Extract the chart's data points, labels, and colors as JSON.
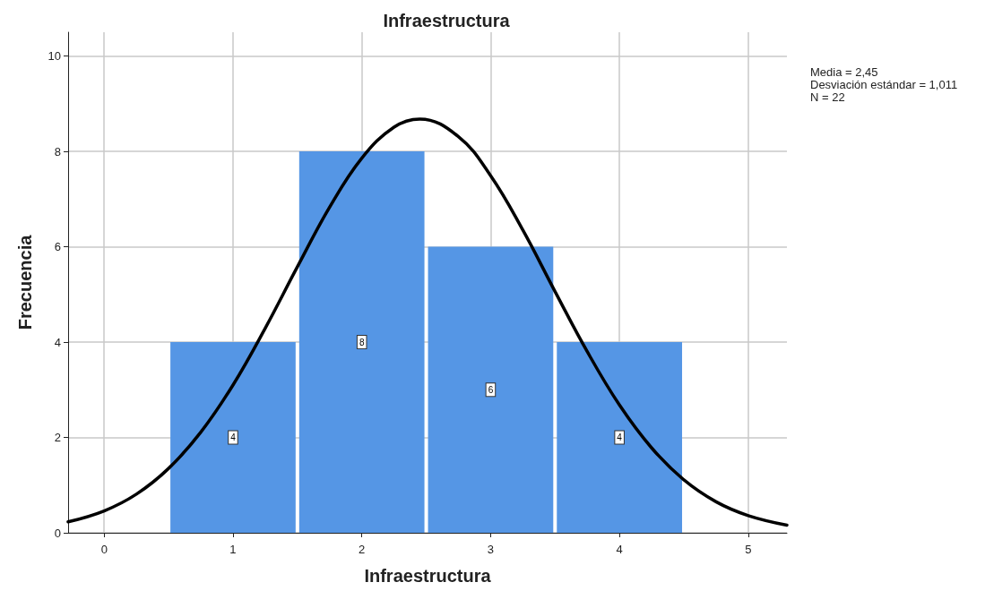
{
  "chart_data": {
    "type": "histogram",
    "title": "Infraestructura",
    "xlabel": "Infraestructura",
    "ylabel": "Frecuencia",
    "bins": [
      0.5,
      1.5,
      2.5,
      3.5,
      4.5
    ],
    "values": [
      4,
      8,
      6,
      4
    ],
    "color": "#5596e5",
    "value_labels": [
      "4",
      "8",
      "6",
      "4"
    ],
    "series": [
      {
        "type": "line",
        "color": "#000000",
        "x": [
          -0.28,
          0,
          0.25,
          0.5,
          0.75,
          1,
          1.25,
          1.5,
          1.75,
          2,
          2.25,
          2.45,
          2.75,
          3,
          3.25,
          3.5,
          3.75,
          4,
          4.25,
          4.5,
          4.75,
          5,
          5.3
        ],
        "values": [
          0.23,
          0.46,
          0.81,
          1.35,
          2.11,
          3.1,
          4.29,
          5.58,
          6.83,
          7.86,
          8.51,
          8.68,
          8.31,
          7.49,
          6.35,
          5.06,
          3.8,
          2.68,
          1.78,
          1.11,
          0.65,
          0.36,
          0.16
        ]
      }
    ],
    "marker": "none",
    "line_style": "solid",
    "xlim": [
      -0.28,
      5.3
    ],
    "xticks": [
      0,
      1,
      2,
      3,
      4,
      5
    ],
    "ylim": [
      0,
      10.5
    ],
    "yticks": [
      0,
      2,
      4,
      6,
      8,
      10
    ],
    "grid": true,
    "annotations": [
      "Media = 2,45",
      "Desviación estándar = 1,011",
      "N = 22"
    ]
  }
}
